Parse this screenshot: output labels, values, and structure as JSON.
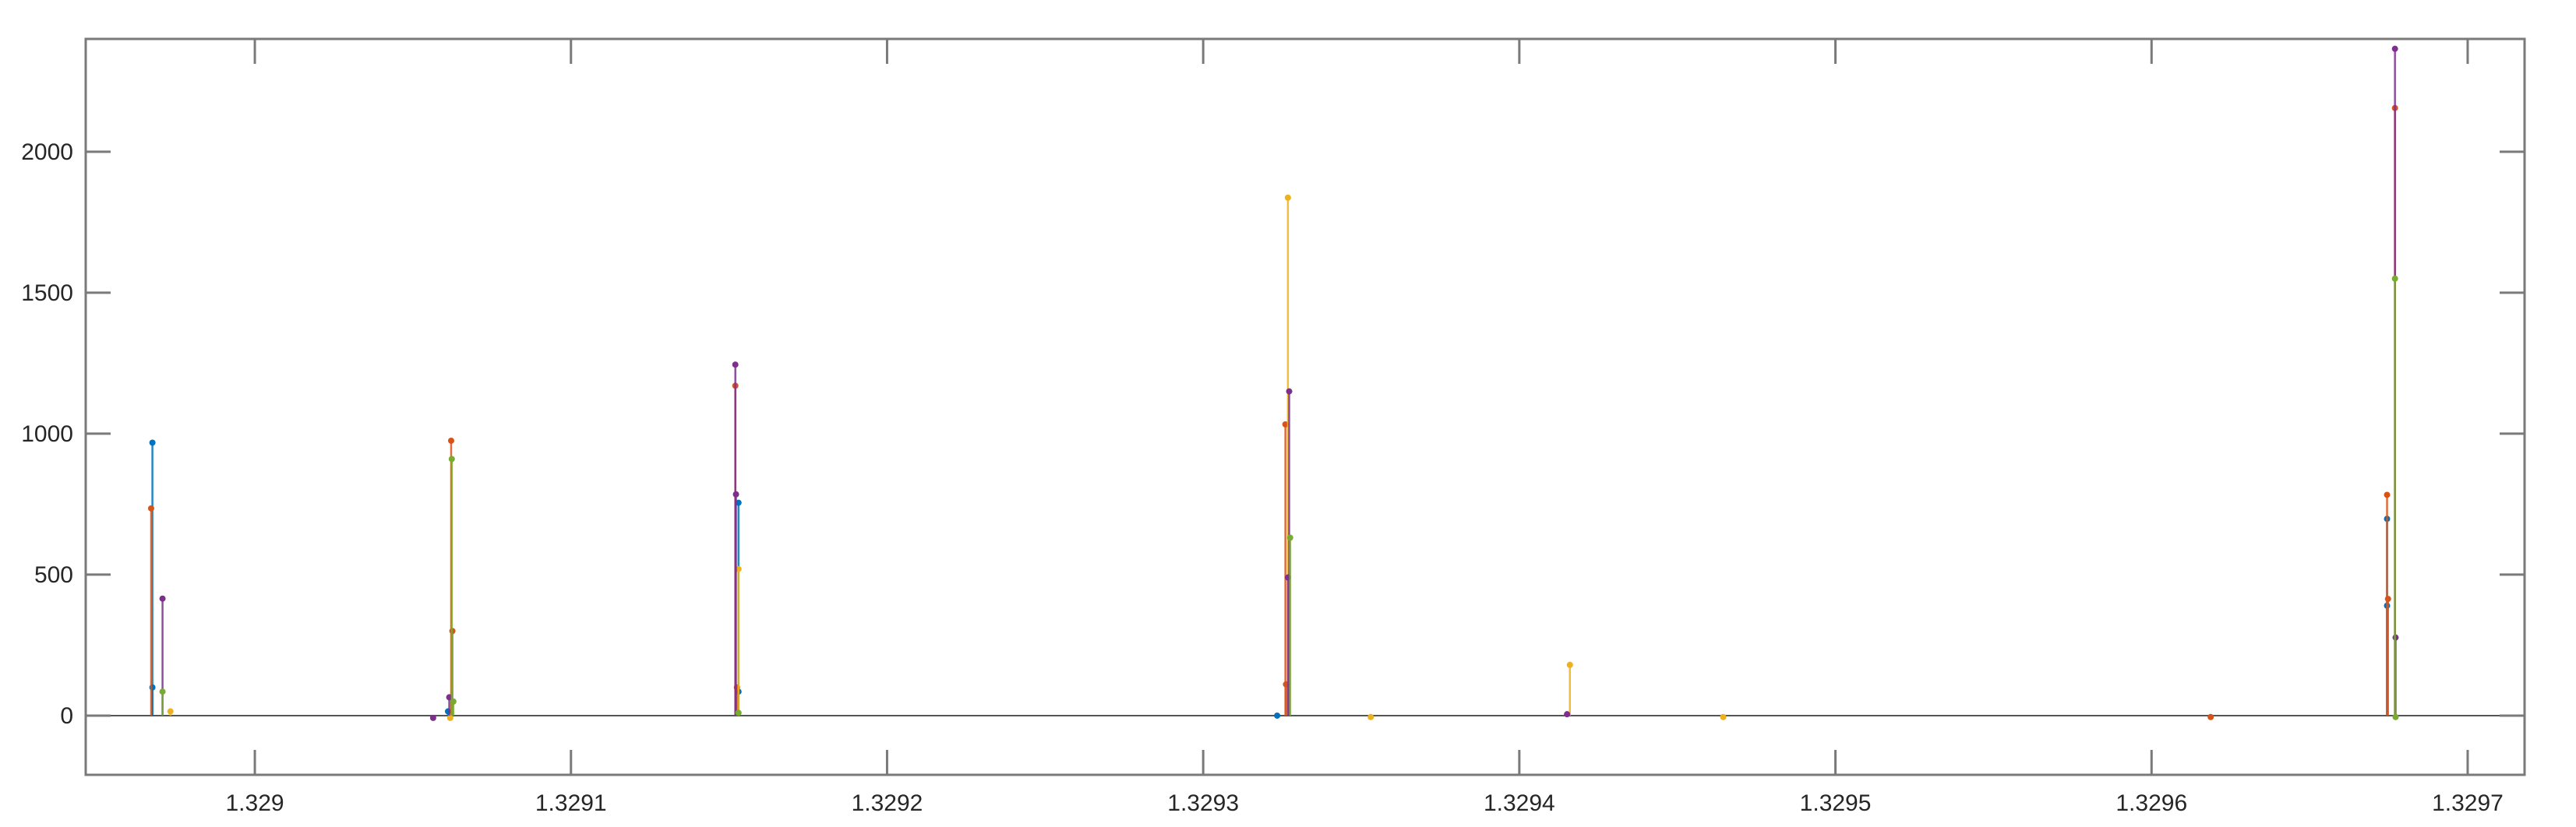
{
  "chart_data": {
    "type": "stem",
    "title": "",
    "xlabel": "",
    "ylabel": "",
    "xlim": [
      1.3289465,
      1.329718
    ],
    "ylim": [
      -210,
      2400
    ],
    "grid": false,
    "box": true,
    "baseline": 0,
    "xticks": [
      1.329,
      1.3291,
      1.3292,
      1.3293,
      1.3294,
      1.3295,
      1.3296,
      1.3297
    ],
    "xtick_labels": [
      "1.329",
      "1.3291",
      "1.3292",
      "1.3293",
      "1.3294",
      "1.3295",
      "1.3296",
      "1.3297"
    ],
    "yticks": [
      0,
      500,
      1000,
      1500,
      2000
    ],
    "ytick_labels": [
      "0",
      "500",
      "1000",
      "1500",
      "2000"
    ],
    "series": [
      {
        "color": "#0072BD",
        "x": [
          1.3289676,
          1.3289676,
          1.3290611,
          1.329153,
          1.329153,
          1.3293234,
          1.3296745,
          1.3296745
        ],
        "y": [
          968,
          100,
          15,
          755,
          85,
          0,
          698,
          390
        ]
      },
      {
        "color": "#D95319",
        "x": [
          1.3289672,
          1.3290621,
          1.3290625,
          1.329152,
          1.3291525,
          1.329326,
          1.3293262,
          1.3296187,
          1.3296745,
          1.3296748,
          1.329677
        ],
        "y": [
          735,
          975,
          300,
          1170,
          100,
          1033,
          111,
          -5,
          783,
          414,
          2155
        ]
      },
      {
        "color": "#EDB120",
        "x": [
          1.3289733,
          1.3290618,
          1.329153,
          1.3293268,
          1.329353,
          1.329416,
          1.3294645
        ],
        "y": [
          15,
          -8,
          520,
          1837,
          -5,
          180,
          -5
        ]
      },
      {
        "color": "#7E2F8E",
        "x": [
          1.3289708,
          1.3290564,
          1.3290615,
          1.329152,
          1.3291522,
          1.3293272,
          1.3293268,
          1.3294151,
          1.329677,
          1.3296772
        ],
        "y": [
          415,
          -8,
          65,
          1245,
          785,
          1150,
          490,
          5,
          2365,
          277
        ]
      },
      {
        "color": "#77AC30",
        "x": [
          1.3289708,
          1.3290623,
          1.3290628,
          1.329153,
          1.3293275,
          1.329677,
          1.3296772
        ],
        "y": [
          85,
          910,
          50,
          10,
          631,
          1550,
          -5
        ]
      }
    ]
  }
}
